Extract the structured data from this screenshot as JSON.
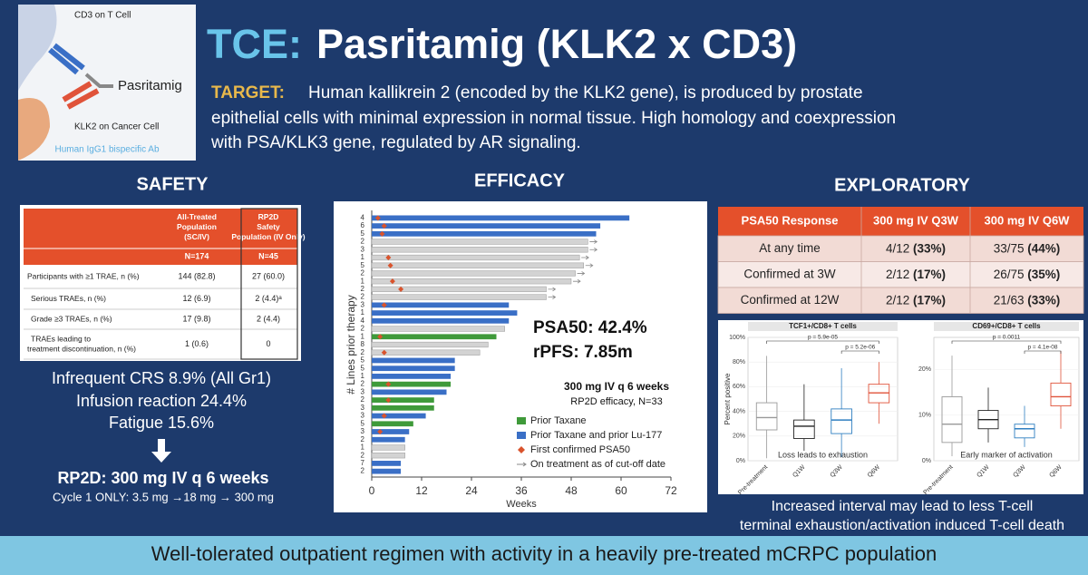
{
  "header": {
    "title_prefix": "TCE:",
    "title_main": "Pasritamig (KLK2 x CD3)",
    "target_label": "TARGET:",
    "target_lines": [
      "Human kallikrein 2 (encoded by the KLK2 gene), is produced by prostate",
      "epithelial cells with minimal expression in normal tissue. High homology and coexpression",
      "with PSA/KLK3 gene, regulated by AR signaling."
    ]
  },
  "diagram": {
    "cd3": "CD3 on T Cell",
    "drug": "Pasritamig",
    "klk2": "KLK2 on Cancer Cell",
    "caption": "Human IgG1 bispecific Ab"
  },
  "safety": {
    "heading": "SAFETY",
    "table": {
      "columns": [
        "All-Treated Population (SC/IV)",
        "RP2D Safety Population (IV Only)"
      ],
      "n": [
        "N=174",
        "N=45"
      ],
      "rows": [
        [
          "Participants with ≥1 TRAE, n (%)",
          "144 (82.8)",
          "27 (60.0)"
        ],
        [
          "Serious TRAEs, n (%)",
          "12 (6.9)",
          "2 (4.4)ᵃ"
        ],
        [
          "Grade ≥3 TRAEs, n (%)",
          "17 (9.8)",
          "2 (4.4)"
        ],
        [
          "TRAEs leading to treatment discontinuation, n (%)",
          "1 (0.6)",
          "0"
        ]
      ]
    },
    "notes": [
      "Infrequent CRS 8.9% (All Gr1)",
      "Infusion reaction 24.4%",
      "Fatigue 15.6%"
    ],
    "rp2d": "RP2D: 300 mg IV q 6 weeks",
    "cycle": "Cycle 1 ONLY: 3.5 mg →18 mg → 300 mg"
  },
  "efficacy": {
    "heading": "EFFICACY",
    "chart_data": {
      "type": "swimmer",
      "xlabel": "Weeks",
      "ylabel": "# Lines prior therapy",
      "categories": [
        "4",
        "6",
        "5",
        "2",
        "3",
        "1",
        "5",
        "2",
        "1",
        "2",
        "2",
        "3",
        "1",
        "4",
        "2",
        "1",
        "8",
        "2",
        "5",
        "5",
        "1",
        "2",
        "3",
        "2",
        "3",
        "3",
        "5",
        "3",
        "2",
        "1",
        "2",
        "7",
        "2"
      ],
      "values": [
        62,
        55,
        54,
        52,
        52,
        50,
        51,
        49,
        48,
        42,
        42,
        33,
        35,
        33,
        32,
        30,
        28,
        26,
        20,
        20,
        19,
        19,
        18,
        15,
        15,
        13,
        10,
        9,
        8,
        8,
        8,
        7,
        7
      ],
      "colors": [
        "#3a6fc6",
        "#3a6fc6",
        "#3a6fc6",
        "#d3d3d3",
        "#d3d3d3",
        "#d3d3d3",
        "#d3d3d3",
        "#d3d3d3",
        "#d3d3d3",
        "#d3d3d3",
        "#d3d3d3",
        "#3a6fc6",
        "#3a6fc6",
        "#3a6fc6",
        "#d3d3d3",
        "#3f9a3a",
        "#d3d3d3",
        "#d3d3d3",
        "#3a6fc6",
        "#3a6fc6",
        "#3a6fc6",
        "#3f9a3a",
        "#3a6fc6",
        "#3f9a3a",
        "#3f9a3a",
        "#3a6fc6",
        "#3f9a3a",
        "#3a6fc6",
        "#3a6fc6",
        "#d3d3d3",
        "#d3d3d3",
        "#3a6fc6",
        "#3a6fc6"
      ],
      "psa50": [
        1.5,
        3,
        2.5,
        null,
        null,
        4,
        4.5,
        null,
        5,
        7,
        null,
        3,
        null,
        null,
        null,
        2,
        null,
        3,
        null,
        null,
        null,
        4,
        null,
        4,
        null,
        3,
        null,
        2,
        null,
        null,
        null,
        null,
        null
      ],
      "ongoing": [
        false,
        false,
        false,
        true,
        true,
        true,
        true,
        true,
        true,
        true,
        true,
        false,
        false,
        false,
        false,
        false,
        false,
        false,
        false,
        false,
        false,
        false,
        false,
        false,
        false,
        false,
        false,
        false,
        false,
        false,
        false,
        false,
        false
      ],
      "xlim": [
        0,
        72
      ],
      "xticks": [
        0,
        12,
        24,
        36,
        48,
        60,
        72
      ],
      "annotations": [
        "PSA50: 42.4%",
        "rPFS: 7.85m"
      ],
      "legend_title": [
        "300 mg IV q 6 weeks",
        "RP2D efficacy, N=33"
      ],
      "legend": [
        {
          "name": "Prior Taxane",
          "color": "#3f9a3a"
        },
        {
          "name": "Prior Taxane and prior Lu-177",
          "color": "#3a6fc6"
        },
        {
          "name": "First confirmed PSA50",
          "color": "#d9532c"
        },
        {
          "name": "On treatment as of cut-off date",
          "color": "#888888"
        }
      ]
    }
  },
  "exploratory": {
    "heading": "EXPLORATORY",
    "table": {
      "header": [
        "PSA50 Response",
        "300 mg IV Q3W",
        "300 mg IV Q6W"
      ],
      "rows": [
        {
          "label": "At any time",
          "cells": [
            [
              "4/12",
              "(33%)"
            ],
            [
              "33/75",
              "(44%)"
            ]
          ]
        },
        {
          "label": "Confirmed at 3W",
          "cells": [
            [
              "2/12",
              "(17%)"
            ],
            [
              "26/75",
              "(35%)"
            ]
          ]
        },
        {
          "label": "Confirmed at 12W",
          "cells": [
            [
              "2/12",
              "(17%)"
            ],
            [
              "21/63",
              "(33%)"
            ]
          ]
        }
      ]
    },
    "boxplots": [
      {
        "type": "box",
        "title": "TCF1+/CD8+ T cells",
        "ylabel": "Percent positive",
        "annotation": "Loss leads to exhaustion",
        "categories": [
          "Pre-treatment",
          "Q1W",
          "Q3W",
          "Q6W"
        ],
        "colors": [
          "#999999",
          "#222222",
          "#2f7fc1",
          "#e0533a"
        ],
        "boxes": [
          [
            2,
            25,
            35,
            47,
            85
          ],
          [
            8,
            18,
            28,
            33,
            62
          ],
          [
            3,
            22,
            33,
            42,
            75
          ],
          [
            30,
            47,
            55,
            62,
            80
          ]
        ],
        "ylim": [
          0,
          100
        ],
        "yticks": [
          {
            "value": 0,
            "label": "0%"
          },
          {
            "value": 20,
            "label": "20%"
          },
          {
            "value": 40,
            "label": "40%"
          },
          {
            "value": 60,
            "label": "60%"
          },
          {
            "value": 80,
            "label": "80%"
          },
          {
            "value": 100,
            "label": "100%"
          }
        ],
        "pvalues": [
          {
            "from": 0,
            "to": 3,
            "label": "p = 5.9e-05"
          },
          {
            "from": 2,
            "to": 3,
            "label": "p = 5.2e-06"
          }
        ]
      },
      {
        "type": "box",
        "title": "CD69+/CD8+ T cells",
        "annotation": "Early marker of activation",
        "categories": [
          "Pre-treatment",
          "Q1W",
          "Q3W",
          "Q6W"
        ],
        "colors": [
          "#999999",
          "#222222",
          "#2f7fc1",
          "#e0533a"
        ],
        "boxes": [
          [
            1,
            4,
            8,
            14,
            23
          ],
          [
            4,
            7,
            9,
            11,
            16
          ],
          [
            3,
            5,
            7,
            8,
            12
          ],
          [
            7,
            12,
            14,
            17,
            24
          ]
        ],
        "ylim": [
          0,
          27
        ],
        "yticks": [
          {
            "value": 0,
            "label": "0%"
          },
          {
            "value": 10,
            "label": "10%"
          },
          {
            "value": 20,
            "label": "20%"
          }
        ],
        "pvalues": [
          {
            "from": 0,
            "to": 3,
            "label": "p = 0.0011"
          },
          {
            "from": 2,
            "to": 3,
            "label": "p = 4.1e-08"
          }
        ]
      }
    ],
    "conclusion": [
      "Increased interval may lead to less T-cell",
      "terminal exhaustion/activation induced T-cell death"
    ]
  },
  "footer": "Well-tolerated outpatient regimen with activity in a heavily pre-treated mCRPC population"
}
